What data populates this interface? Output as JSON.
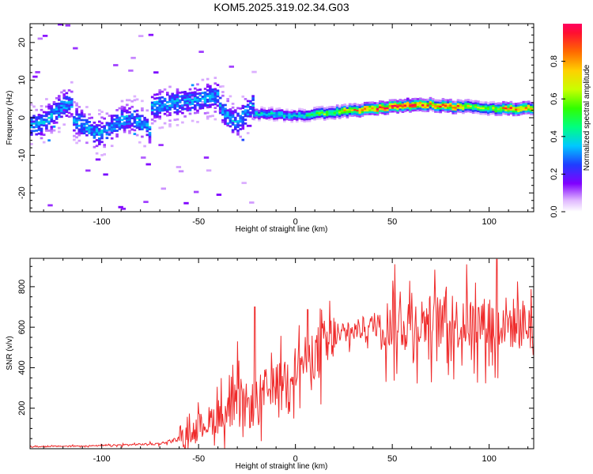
{
  "title": "KOM5.2025.319.02.34.G03",
  "chart_data": [
    {
      "type": "heatmap",
      "name": "spectrogram",
      "xlabel": "Height of straight line (km)",
      "ylabel": "Frequency (Hz)",
      "xlim": [
        -137,
        123
      ],
      "ylim": [
        -25,
        25
      ],
      "xticks": [
        -100,
        -50,
        0,
        50,
        100
      ],
      "yticks": [
        -20,
        -10,
        0,
        10,
        20
      ],
      "colorbar": {
        "label": "Normalized spectral amplitude",
        "range": [
          0.0,
          1.0
        ],
        "ticks": [
          0.0,
          0.2,
          0.4,
          0.6,
          0.8
        ]
      },
      "ridge": {
        "x": [
          -22,
          -10,
          0,
          10,
          20,
          30,
          40,
          50,
          60,
          70,
          80,
          90,
          100,
          110,
          122
        ],
        "freq": [
          1.0,
          1.0,
          0.5,
          1.0,
          1.5,
          2.0,
          2.5,
          3.0,
          3.5,
          3.5,
          3.0,
          3.0,
          2.5,
          2.5,
          2.5
        ],
        "amplitude": [
          0.35,
          0.4,
          0.35,
          0.5,
          0.6,
          0.75,
          0.85,
          0.9,
          0.95,
          0.75,
          0.85,
          0.6,
          0.55,
          0.85,
          0.75
        ]
      },
      "noise_region_x": [
        -137,
        -22
      ],
      "noise_freq_range": [
        -25,
        25
      ]
    },
    {
      "type": "line",
      "name": "snr",
      "xlabel": "Height of straight line (km)",
      "ylabel": "SNR (v/v)",
      "xlim": [
        -137,
        123
      ],
      "ylim": [
        0,
        940
      ],
      "xticks": [
        -100,
        -50,
        0,
        50,
        100
      ],
      "yticks": [
        200,
        400,
        600,
        800
      ],
      "color": "#ef2b2b",
      "envelope": {
        "x": [
          -137,
          -100,
          -70,
          -60,
          -50,
          -40,
          -30,
          -20,
          -15,
          -10,
          0,
          10,
          20,
          30,
          40,
          50,
          60,
          70,
          80,
          90,
          100,
          104,
          110,
          123
        ],
        "y": [
          10,
          15,
          25,
          50,
          110,
          160,
          200,
          220,
          270,
          330,
          400,
          470,
          540,
          580,
          610,
          615,
          620,
          630,
          620,
          620,
          620,
          640,
          620,
          610
        ]
      },
      "spikes": [
        {
          "x": -30,
          "y": 530
        },
        {
          "x": -21,
          "y": 700
        },
        {
          "x": 2,
          "y": 610
        },
        {
          "x": 60,
          "y": 770
        },
        {
          "x": 78,
          "y": 800
        },
        {
          "x": 93,
          "y": 820
        },
        {
          "x": 104,
          "y": 935
        },
        {
          "x": 103,
          "y": 350
        }
      ]
    }
  ]
}
